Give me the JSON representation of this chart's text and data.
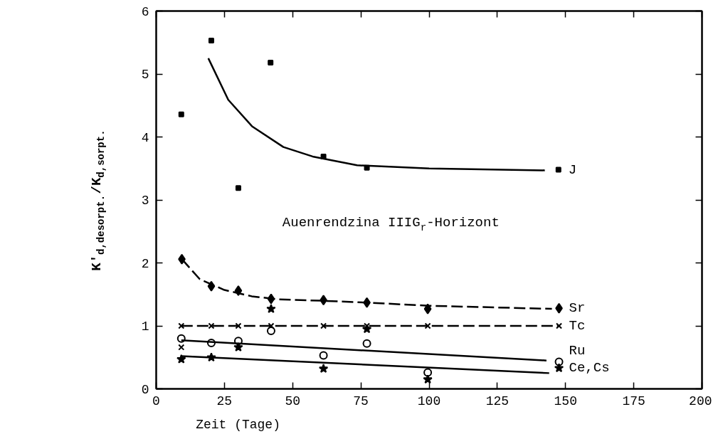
{
  "chart_data": {
    "type": "scatter",
    "xlabel": "Zeit (Tage)",
    "ylabel": "K'$_{d,desorpt.}$/K$_{d,sorpt.}$",
    "annotations": [
      "Auenrendzina IIIG$_{r}$-Horizont"
    ],
    "xlim": [
      0,
      200
    ],
    "ylim": [
      0,
      6
    ],
    "xticks": [
      0,
      25,
      50,
      75,
      100,
      125,
      150,
      175,
      200
    ],
    "yticks": [
      0,
      1,
      2,
      3,
      4,
      5,
      6
    ],
    "grid": false,
    "series": [
      {
        "name": "J",
        "marker": "square",
        "color": "#000000",
        "x": [
          9.2,
          20.2,
          30.1,
          41.9,
          61.3,
          77.2,
          147.4
        ],
        "values": [
          4.36,
          5.53,
          3.19,
          5.18,
          3.69,
          3.51,
          3.48
        ]
      },
      {
        "type": "line",
        "marker": "none",
        "line_style": "solid",
        "color": "#000000",
        "x": [
          19.1,
          26.4,
          35.1,
          46.6,
          57.3,
          73.6,
          100,
          142.4
        ],
        "values": [
          5.25,
          4.59,
          4.17,
          3.84,
          3.69,
          3.55,
          3.5,
          3.47
        ]
      },
      {
        "name": "Sr",
        "marker": "diamond",
        "color": "#000000",
        "x": [
          9.4,
          20.2,
          30.1,
          42.1,
          61.3,
          77.2,
          99.5,
          147.6
        ],
        "values": [
          2.06,
          1.63,
          1.56,
          1.43,
          1.41,
          1.37,
          1.27,
          1.28
        ]
      },
      {
        "type": "line",
        "marker": "none",
        "line_style": "dashed",
        "color": "#000000",
        "x": [
          9.4,
          16,
          25,
          35,
          45,
          60,
          77,
          100,
          145
        ],
        "values": [
          2.06,
          1.74,
          1.57,
          1.47,
          1.42,
          1.4,
          1.37,
          1.32,
          1.27
        ]
      },
      {
        "name": "Tc",
        "marker": "cross",
        "color": "#000000",
        "x": [
          9.2,
          20.2,
          30.1,
          42.1,
          61.3,
          77.2,
          99.5,
          147.6
        ],
        "values": [
          1.0,
          1.0,
          1.0,
          1.0,
          1.0,
          1.0,
          1.0,
          1.0
        ]
      },
      {
        "type": "line",
        "marker": "none",
        "line_style": "dashed",
        "color": "#000000",
        "x": [
          9.2,
          147.6
        ],
        "values": [
          1.0,
          1.0
        ]
      },
      {
        "name": "Ru",
        "marker": "circle",
        "color": "#000000",
        "x": [
          9.2,
          20.2,
          30.1,
          42.1,
          61.3,
          77.2,
          99.5,
          147.6
        ],
        "values": [
          0.8,
          0.73,
          0.76,
          0.92,
          0.53,
          0.72,
          0.26,
          0.43
        ]
      },
      {
        "type": "line",
        "marker": "none",
        "line_style": "solid",
        "color": "#000000",
        "x": [
          9.2,
          143
        ],
        "values": [
          0.77,
          0.45
        ]
      },
      {
        "name": "Ce,Cs",
        "marker": "star",
        "color": "#000000",
        "x": [
          9.2,
          20.2,
          30.1,
          42.1,
          61.3,
          77.2,
          99.5,
          147.6
        ],
        "values": [
          0.47,
          0.5,
          0.66,
          1.27,
          0.32,
          0.95,
          0.15,
          0.33
        ]
      },
      {
        "type": "line",
        "marker": "none",
        "line_style": "solid",
        "color": "#000000",
        "x": [
          9.2,
          144
        ],
        "values": [
          0.52,
          0.25
        ]
      },
      {
        "marker": "cross",
        "color": "#000000",
        "x": [
          9.2
        ],
        "values": [
          0.66
        ]
      }
    ]
  }
}
